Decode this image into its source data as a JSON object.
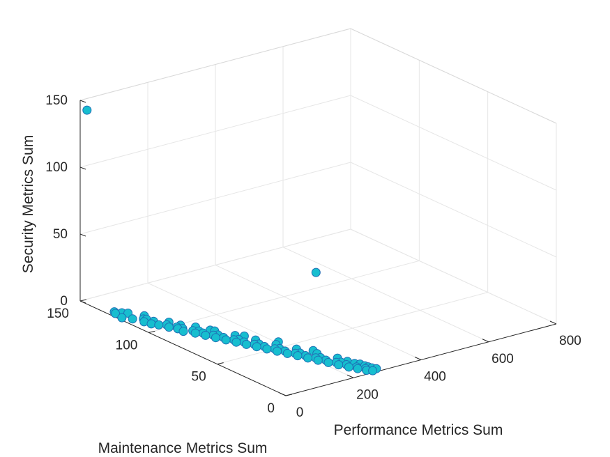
{
  "chart_data": {
    "type": "scatter",
    "title": "",
    "xlabel": "Performance Metrics Sum",
    "ylabel": "Maintenance Metrics Sum",
    "zlabel": "Security Metrics Sum",
    "xlim": [
      0,
      800
    ],
    "ylim": [
      0,
      150
    ],
    "zlim": [
      0,
      150
    ],
    "x_ticks": [
      "0",
      "200",
      "400",
      "600",
      "800"
    ],
    "y_ticks": [
      "0",
      "50",
      "100",
      "150"
    ],
    "z_ticks": [
      "0",
      "50",
      "100",
      "150"
    ],
    "grid": true,
    "marker_color": "#17BECF",
    "marker_edge": "#1F6FB4",
    "series": [
      {
        "points": [
          [
            20,
            130,
            0
          ],
          [
            30,
            127,
            0
          ],
          [
            40,
            125,
            0
          ],
          [
            25,
            118,
            0
          ],
          [
            45,
            115,
            0
          ],
          [
            35,
            112,
            0
          ],
          [
            55,
            110,
            0
          ],
          [
            50,
            105,
            0
          ],
          [
            65,
            103,
            0
          ],
          [
            60,
            100,
            0
          ],
          [
            75,
            98,
            0
          ],
          [
            80,
            95,
            0
          ],
          [
            70,
            92,
            0
          ],
          [
            90,
            90,
            0
          ],
          [
            85,
            87,
            0
          ],
          [
            100,
            85,
            0
          ],
          [
            95,
            82,
            0
          ],
          [
            110,
            80,
            0
          ],
          [
            105,
            77,
            0
          ],
          [
            120,
            75,
            0
          ],
          [
            115,
            72,
            0
          ],
          [
            130,
            70,
            0
          ],
          [
            125,
            67,
            0
          ],
          [
            140,
            65,
            0
          ],
          [
            135,
            62,
            0
          ],
          [
            150,
            60,
            0
          ],
          [
            145,
            57,
            0
          ],
          [
            160,
            55,
            0
          ],
          [
            155,
            52,
            0
          ],
          [
            170,
            50,
            0
          ],
          [
            165,
            47,
            0
          ],
          [
            180,
            45,
            0
          ],
          [
            175,
            42,
            0
          ],
          [
            190,
            40,
            0
          ],
          [
            185,
            37,
            0
          ],
          [
            200,
            35,
            0
          ],
          [
            195,
            32,
            0
          ],
          [
            210,
            30,
            0
          ],
          [
            205,
            27,
            0
          ],
          [
            220,
            25,
            0
          ],
          [
            215,
            22,
            0
          ],
          [
            230,
            20,
            0
          ],
          [
            225,
            17,
            0
          ],
          [
            240,
            15,
            0
          ],
          [
            235,
            12,
            0
          ],
          [
            250,
            10,
            0
          ],
          [
            245,
            8,
            0
          ],
          [
            260,
            6,
            0
          ],
          [
            255,
            4,
            0
          ],
          [
            265,
            2,
            0
          ],
          [
            10,
            122,
            0
          ],
          [
            60,
            118,
            0
          ],
          [
            40,
            108,
            0
          ],
          [
            80,
            105,
            0
          ],
          [
            70,
            96,
            0
          ],
          [
            110,
            93,
            0
          ],
          [
            100,
            88,
            0
          ],
          [
            130,
            84,
            0
          ],
          [
            120,
            79,
            0
          ],
          [
            150,
            74,
            0
          ],
          [
            140,
            69,
            0
          ],
          [
            170,
            64,
            0
          ],
          [
            160,
            59,
            0
          ],
          [
            190,
            54,
            0
          ],
          [
            180,
            49,
            0
          ],
          [
            210,
            44,
            0
          ],
          [
            200,
            39,
            0
          ],
          [
            230,
            34,
            0
          ],
          [
            220,
            29,
            0
          ],
          [
            250,
            24,
            0
          ],
          [
            240,
            19,
            0
          ],
          [
            260,
            14,
            0
          ],
          [
            270,
            9,
            0
          ],
          [
            275,
            5,
            0
          ],
          [
            280,
            3,
            0
          ],
          [
            15,
            128,
            0
          ],
          [
            50,
            114,
            0
          ],
          [
            90,
            99,
            0
          ],
          [
            125,
            86,
            0
          ],
          [
            165,
            71,
            0
          ],
          [
            205,
            56,
            0
          ],
          [
            235,
            38,
            0
          ],
          [
            255,
            18,
            0
          ],
          [
            268,
            12,
            0
          ],
          [
            272,
            7,
            0
          ],
          [
            0,
            145,
            145
          ],
          [
            150,
            15,
            75
          ]
        ]
      }
    ]
  }
}
